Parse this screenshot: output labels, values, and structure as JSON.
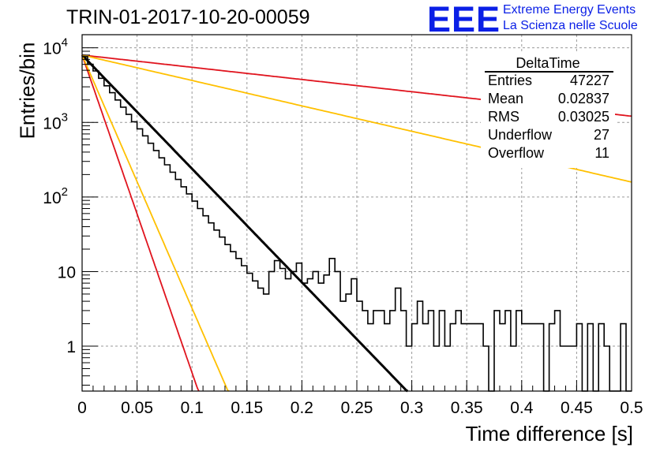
{
  "title": "TRIN-01-2017-10-20-00059",
  "logo": {
    "mark": "EEE",
    "line1": "Extreme Energy Events",
    "line2": "La Scienza nelle Scuole",
    "color": "#0a1fe6"
  },
  "stats_box": {
    "title": "DeltaTime",
    "rows": [
      {
        "label": "Entries",
        "value": "47227"
      },
      {
        "label": "Mean",
        "value": "0.02837"
      },
      {
        "label": "RMS",
        "value": "0.03025"
      },
      {
        "label": "Underflow",
        "value": "27"
      },
      {
        "label": "Overflow",
        "value": "11"
      }
    ]
  },
  "chart_data": {
    "type": "line",
    "xlabel": "Time difference [s]",
    "ylabel": "Entries/bin",
    "xlim": [
      0,
      0.5
    ],
    "ylim": [
      0.25,
      15000
    ],
    "yscale": "log",
    "grid": true,
    "x_ticks": [
      "0",
      "0.05",
      "0.1",
      "0.15",
      "0.2",
      "0.25",
      "0.3",
      "0.35",
      "0.4",
      "0.45",
      "0.5"
    ],
    "x_tick_values": [
      0,
      0.05,
      0.1,
      0.15,
      0.2,
      0.25,
      0.3,
      0.35,
      0.4,
      0.45,
      0.5
    ],
    "y_ticks": [
      {
        "value": 10000,
        "base": "10",
        "exp": "4"
      },
      {
        "value": 1000,
        "base": "10",
        "exp": "3"
      },
      {
        "value": 100,
        "base": "10",
        "exp": "2"
      },
      {
        "value": 10,
        "base": "10",
        "exp": ""
      },
      {
        "value": 1,
        "base": "1",
        "exp": ""
      }
    ],
    "histogram": {
      "name": "DeltaTime",
      "color": "#000000",
      "bin_width": 0.005,
      "x_start": 0,
      "values": [
        7600,
        6000,
        4900,
        3900,
        3100,
        2500,
        2000,
        1600,
        1280,
        1020,
        820,
        660,
        525,
        420,
        335,
        270,
        215,
        172,
        137,
        110,
        88,
        70,
        56,
        45,
        36,
        29,
        23,
        18.5,
        15,
        12,
        9.5,
        7.5,
        6,
        5,
        10,
        14,
        11,
        8,
        10,
        13,
        7,
        8,
        10,
        7,
        9,
        15,
        10,
        4,
        5,
        8,
        4,
        3,
        2,
        3,
        3,
        2,
        3,
        6,
        3,
        1,
        2,
        4,
        2,
        3,
        1,
        3,
        1,
        2,
        3,
        2,
        2,
        2,
        2,
        1,
        0.1,
        3,
        2,
        3,
        1,
        3,
        2,
        2,
        2,
        2,
        0.1,
        2,
        3,
        1,
        1,
        1,
        2,
        0.1,
        2,
        0.1,
        2,
        1,
        0.1,
        0.1,
        2,
        0.1
      ]
    },
    "fits": [
      {
        "color": "#000000",
        "a": 8000,
        "tau": 0.0285,
        "width": 3
      },
      {
        "color": "#e0141e",
        "a": 8000,
        "tau": 0.265,
        "width": 1.8
      },
      {
        "color": "#ffc000",
        "a": 8000,
        "tau": 0.1275,
        "width": 1.8
      },
      {
        "color": "#e0141e",
        "a": 8000,
        "tau": 0.0102,
        "width": 1.8
      },
      {
        "color": "#ffc000",
        "a": 8000,
        "tau": 0.0128,
        "width": 1.8
      }
    ]
  }
}
